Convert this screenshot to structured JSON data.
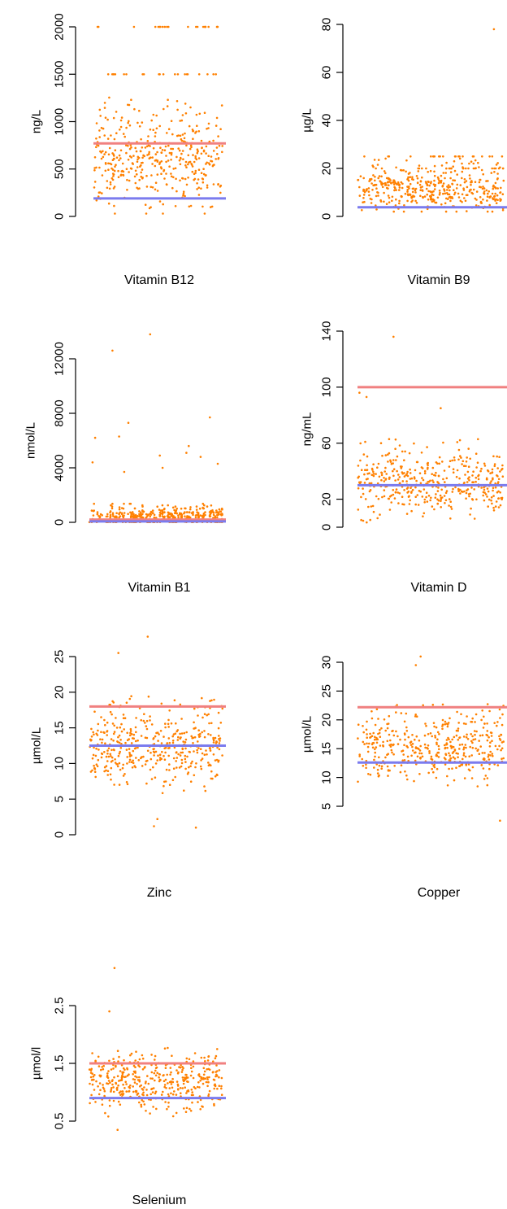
{
  "colors": {
    "points": "#ff8000",
    "upper_line": "#f08080",
    "lower_line": "#7b7bee",
    "axis": "#000000"
  },
  "chart_data": [
    {
      "type": "scatter",
      "title": "Vitamin B12",
      "ylabel": "ng/L",
      "ylim": [
        0,
        2000
      ],
      "yticks": [
        0,
        500,
        1000,
        1500,
        2000
      ],
      "upper_ref": 770,
      "lower_ref": 190,
      "distribution": {
        "n": 420,
        "center": 550,
        "spread": 330,
        "min": 30,
        "max": 2000,
        "seed": 11,
        "clusters": [
          1500,
          2000
        ]
      }
    },
    {
      "type": "scatter",
      "title": "Vitamin B9",
      "ylabel": "µg/L",
      "ylim": [
        0,
        80
      ],
      "yticks": [
        0,
        20,
        40,
        60,
        80
      ],
      "lower_ref": 3.8,
      "outliers": [
        78
      ],
      "distribution": {
        "n": 420,
        "center": 11,
        "spread": 6,
        "min": 2,
        "max": 26,
        "seed": 23,
        "clusters": [
          20,
          25
        ]
      }
    },
    {
      "type": "scatter",
      "title": "Vitamin B1",
      "ylabel": "nmol/L",
      "ylim": [
        0,
        14000
      ],
      "yticks": [
        0,
        4000,
        8000,
        12000
      ],
      "upper_ref": 200,
      "lower_ref": 70,
      "outliers": [
        13800,
        12600,
        7700,
        7300,
        6300,
        6200,
        5600,
        5100,
        4900,
        4800,
        4400,
        4300,
        4000,
        3700
      ],
      "distribution": {
        "n": 420,
        "center": 300,
        "spread": 500,
        "min": 20,
        "max": 3000,
        "seed": 37,
        "clusters": []
      }
    },
    {
      "type": "scatter",
      "title": "Vitamin D",
      "ylabel": "ng/mL",
      "ylim": [
        0,
        140
      ],
      "yticks": [
        0,
        20,
        60,
        100,
        140
      ],
      "upper_ref": 100,
      "lower_ref": 30,
      "outliers": [
        136,
        96,
        93,
        85
      ],
      "distribution": {
        "n": 420,
        "center": 30,
        "spread": 15,
        "min": 3,
        "max": 80,
        "seed": 41,
        "clusters": []
      }
    },
    {
      "type": "scatter",
      "title": "Zinc",
      "ylabel": "µmol/L",
      "ylim": [
        0,
        27
      ],
      "yticks": [
        0,
        5,
        10,
        15,
        20,
        25
      ],
      "upper_ref": 18,
      "lower_ref": 12.5,
      "outliers": [
        27.8,
        25.5,
        1.0,
        1.2,
        2.2
      ],
      "distribution": {
        "n": 420,
        "center": 12,
        "spread": 3.5,
        "min": 3.5,
        "max": 24,
        "seed": 53,
        "clusters": []
      }
    },
    {
      "type": "scatter",
      "title": "Copper",
      "ylabel": "µmol/L",
      "ylim": [
        4,
        31
      ],
      "yticks": [
        5,
        10,
        15,
        20,
        25,
        30
      ],
      "upper_ref": 22.2,
      "lower_ref": 12.6,
      "outliers": [
        31,
        29.5,
        2.5
      ],
      "distribution": {
        "n": 420,
        "center": 15,
        "spread": 3.8,
        "min": 5.5,
        "max": 27,
        "seed": 67,
        "clusters": []
      }
    },
    {
      "type": "scatter",
      "title": "Selenium",
      "ylabel": "µmol/l",
      "ylim": [
        0.35,
        2.95
      ],
      "yticks": [
        0.5,
        1.5,
        2.5
      ],
      "upper_ref": 1.5,
      "lower_ref": 0.9,
      "outliers": [
        3.15,
        2.4,
        0.35
      ],
      "distribution": {
        "n": 420,
        "center": 1.15,
        "spread": 0.3,
        "min": 0.4,
        "max": 2.2,
        "seed": 79,
        "clusters": []
      }
    }
  ]
}
